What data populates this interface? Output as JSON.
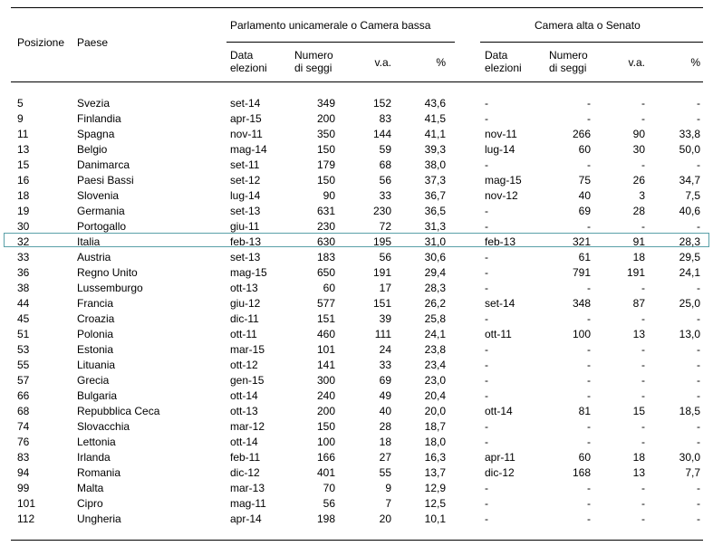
{
  "header": {
    "position": "Posizione",
    "country": "Paese",
    "lower_house": "Parlamento unicamerale o Camera bassa",
    "upper_house": "Camera alta o Senato",
    "sub": {
      "date_line1": "Data",
      "date_line2": "elezioni",
      "seats_line1": "Numero",
      "seats_line2": "di seggi",
      "va": "v.a.",
      "pct": "%"
    }
  },
  "highlighted_country": "Italia",
  "rows": [
    {
      "pos": "5",
      "country": "Svezia",
      "d1": "set-14",
      "s1": "349",
      "v1": "152",
      "p1": "43,6",
      "d2": "-",
      "s2": "-",
      "v2": "-",
      "p2": "-"
    },
    {
      "pos": "9",
      "country": "Finlandia",
      "d1": "apr-15",
      "s1": "200",
      "v1": "83",
      "p1": "41,5",
      "d2": "-",
      "s2": "-",
      "v2": "-",
      "p2": "-"
    },
    {
      "pos": "11",
      "country": "Spagna",
      "d1": "nov-11",
      "s1": "350",
      "v1": "144",
      "p1": "41,1",
      "d2": "nov-11",
      "s2": "266",
      "v2": "90",
      "p2": "33,8"
    },
    {
      "pos": "13",
      "country": "Belgio",
      "d1": "mag-14",
      "s1": "150",
      "v1": "59",
      "p1": "39,3",
      "d2": "lug-14",
      "s2": "60",
      "v2": "30",
      "p2": "50,0"
    },
    {
      "pos": "15",
      "country": "Danimarca",
      "d1": "set-11",
      "s1": "179",
      "v1": "68",
      "p1": "38,0",
      "d2": "-",
      "s2": "-",
      "v2": "-",
      "p2": "-"
    },
    {
      "pos": "16",
      "country": "Paesi Bassi",
      "d1": "set-12",
      "s1": "150",
      "v1": "56",
      "p1": "37,3",
      "d2": "mag-15",
      "s2": "75",
      "v2": "26",
      "p2": "34,7"
    },
    {
      "pos": "18",
      "country": "Slovenia",
      "d1": "lug-14",
      "s1": "90",
      "v1": "33",
      "p1": "36,7",
      "d2": "nov-12",
      "s2": "40",
      "v2": "3",
      "p2": "7,5"
    },
    {
      "pos": "19",
      "country": "Germania",
      "d1": "set-13",
      "s1": "631",
      "v1": "230",
      "p1": "36,5",
      "d2": "-",
      "s2": "69",
      "v2": "28",
      "p2": "40,6"
    },
    {
      "pos": "30",
      "country": "Portogallo",
      "d1": "giu-11",
      "s1": "230",
      "v1": "72",
      "p1": "31,3",
      "d2": "-",
      "s2": "-",
      "v2": "-",
      "p2": "-"
    },
    {
      "pos": "32",
      "country": "Italia",
      "d1": "feb-13",
      "s1": "630",
      "v1": "195",
      "p1": "31,0",
      "d2": "feb-13",
      "s2": "321",
      "v2": "91",
      "p2": "28,3"
    },
    {
      "pos": "33",
      "country": "Austria",
      "d1": "set-13",
      "s1": "183",
      "v1": "56",
      "p1": "30,6",
      "d2": "-",
      "s2": "61",
      "v2": "18",
      "p2": "29,5"
    },
    {
      "pos": "36",
      "country": "Regno Unito",
      "d1": "mag-15",
      "s1": "650",
      "v1": "191",
      "p1": "29,4",
      "d2": "-",
      "s2": "791",
      "v2": "191",
      "p2": "24,1"
    },
    {
      "pos": "38",
      "country": "Lussemburgo",
      "d1": "ott-13",
      "s1": "60",
      "v1": "17",
      "p1": "28,3",
      "d2": "-",
      "s2": "-",
      "v2": "-",
      "p2": "-"
    },
    {
      "pos": "44",
      "country": "Francia",
      "d1": "giu-12",
      "s1": "577",
      "v1": "151",
      "p1": "26,2",
      "d2": "set-14",
      "s2": "348",
      "v2": "87",
      "p2": "25,0"
    },
    {
      "pos": "45",
      "country": "Croazia",
      "d1": "dic-11",
      "s1": "151",
      "v1": "39",
      "p1": "25,8",
      "d2": "-",
      "s2": "-",
      "v2": "-",
      "p2": "-"
    },
    {
      "pos": "51",
      "country": "Polonia",
      "d1": "ott-11",
      "s1": "460",
      "v1": "111",
      "p1": "24,1",
      "d2": "ott-11",
      "s2": "100",
      "v2": "13",
      "p2": "13,0"
    },
    {
      "pos": "53",
      "country": "Estonia",
      "d1": "mar-15",
      "s1": "101",
      "v1": "24",
      "p1": "23,8",
      "d2": "-",
      "s2": "-",
      "v2": "-",
      "p2": "-"
    },
    {
      "pos": "55",
      "country": "Lituania",
      "d1": "ott-12",
      "s1": "141",
      "v1": "33",
      "p1": "23,4",
      "d2": "-",
      "s2": "-",
      "v2": "-",
      "p2": "-"
    },
    {
      "pos": "57",
      "country": "Grecia",
      "d1": "gen-15",
      "s1": "300",
      "v1": "69",
      "p1": "23,0",
      "d2": "-",
      "s2": "-",
      "v2": "-",
      "p2": "-"
    },
    {
      "pos": "66",
      "country": "Bulgaria",
      "d1": "ott-14",
      "s1": "240",
      "v1": "49",
      "p1": "20,4",
      "d2": "-",
      "s2": "-",
      "v2": "-",
      "p2": "-"
    },
    {
      "pos": "68",
      "country": "Repubblica Ceca",
      "d1": "ott-13",
      "s1": "200",
      "v1": "40",
      "p1": "20,0",
      "d2": "ott-14",
      "s2": "81",
      "v2": "15",
      "p2": "18,5"
    },
    {
      "pos": "74",
      "country": "Slovacchia",
      "d1": "mar-12",
      "s1": "150",
      "v1": "28",
      "p1": "18,7",
      "d2": "-",
      "s2": "-",
      "v2": "-",
      "p2": "-"
    },
    {
      "pos": "76",
      "country": "Lettonia",
      "d1": "ott-14",
      "s1": "100",
      "v1": "18",
      "p1": "18,0",
      "d2": "-",
      "s2": "-",
      "v2": "-",
      "p2": "-"
    },
    {
      "pos": "83",
      "country": "Irlanda",
      "d1": "feb-11",
      "s1": "166",
      "v1": "27",
      "p1": "16,3",
      "d2": "apr-11",
      "s2": "60",
      "v2": "18",
      "p2": "30,0"
    },
    {
      "pos": "94",
      "country": "Romania",
      "d1": "dic-12",
      "s1": "401",
      "v1": "55",
      "p1": "13,7",
      "d2": "dic-12",
      "s2": "168",
      "v2": "13",
      "p2": "7,7"
    },
    {
      "pos": "99",
      "country": "Malta",
      "d1": "mar-13",
      "s1": "70",
      "v1": "9",
      "p1": "12,9",
      "d2": "-",
      "s2": "-",
      "v2": "-",
      "p2": "-"
    },
    {
      "pos": "101",
      "country": "Cipro",
      "d1": "mag-11",
      "s1": "56",
      "v1": "7",
      "p1": "12,5",
      "d2": "-",
      "s2": "-",
      "v2": "-",
      "p2": "-"
    },
    {
      "pos": "112",
      "country": "Ungheria",
      "d1": "apr-14",
      "s1": "198",
      "v1": "20",
      "p1": "10,1",
      "d2": "-",
      "s2": "-",
      "v2": "-",
      "p2": "-"
    }
  ]
}
